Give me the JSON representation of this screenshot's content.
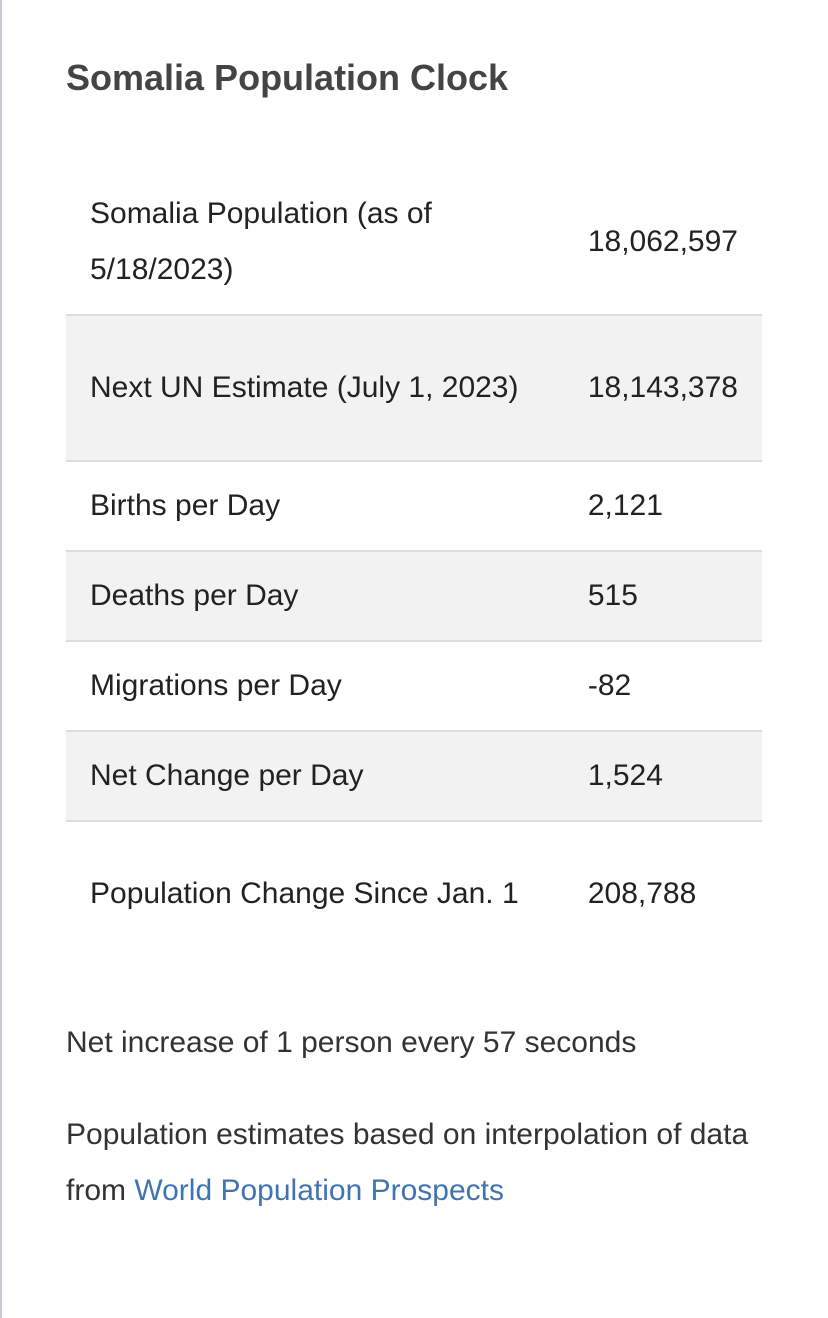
{
  "title": "Somalia Population Clock",
  "rows": [
    {
      "label": "Somalia Population (as of 5/18/2023)",
      "value": "18,062,597"
    },
    {
      "label": "Next UN Estimate (July 1, 2023)",
      "value": "18,143,378"
    },
    {
      "label": "Births per Day",
      "value": "2,121"
    },
    {
      "label": "Deaths per Day",
      "value": "515"
    },
    {
      "label": "Migrations per Day",
      "value": "-82"
    },
    {
      "label": "Net Change per Day",
      "value": "1,524"
    },
    {
      "label": "Population Change Since Jan. 1",
      "value": "208,788"
    }
  ],
  "net_increase_note": "Net increase of 1 person every 57 seconds",
  "source": {
    "prefix": "Population estimates based on interpolation of data from",
    "link_text": "World Population Prospects"
  },
  "colors": {
    "link": "#3f74b0",
    "shaded_row": "#f2f2f2",
    "row_border": "#dddddd"
  }
}
